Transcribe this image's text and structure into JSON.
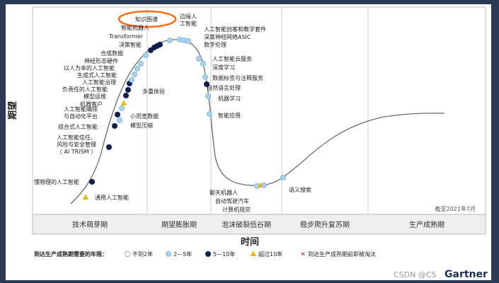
{
  "chart_data": {
    "type": "hype_cycle",
    "xlabel": "时间",
    "ylabel": "期望",
    "date_note": "截至2021年7月",
    "phases": [
      "技术萌芽期",
      "期望膨胀期",
      "泡沫破裂低谷期",
      "稳步爬升复苏期",
      "生产成熟期"
    ],
    "legend": {
      "title": "到达生产成熟期需要的年限：",
      "items": [
        {
          "label": "不到2年",
          "category": "lt2",
          "color": "#ffffff"
        },
        {
          "label": "2—5年",
          "category": "y2to5",
          "color": "#a8d3ea"
        },
        {
          "label": "5—10年",
          "category": "y5to10",
          "color": "#0d1f4f"
        },
        {
          "label": "超过10年",
          "category": "gt10",
          "color": "#f0b400"
        },
        {
          "label": "到达生产成熟期前即被淘汰",
          "category": "obsolete",
          "color": "#d01f1f"
        }
      ]
    },
    "highlighted_label": "知识图谱",
    "points": [
      {
        "label": "通用人工智能",
        "category": "gt10"
      },
      {
        "label": "懂物理的人工智能",
        "category": "y5to10"
      },
      {
        "label": "人工智能信任、风险与安全管理（AI TRiSM）",
        "category": "y5to10"
      },
      {
        "label": "组合式人工智能",
        "category": "y5to10"
      },
      {
        "label": "模型压缩",
        "category": "y2to5"
      },
      {
        "label": "人工智能编排与自动化平台",
        "category": "y5to10"
      },
      {
        "label": "小而宽数据",
        "category": "y2to5"
      },
      {
        "label": "机器客户",
        "category": "gt10"
      },
      {
        "label": "模型运维",
        "category": "y5to10"
      },
      {
        "label": "负责任的人工智能",
        "category": "y5to10"
      },
      {
        "label": "多重体验",
        "category": "y5to10"
      },
      {
        "label": "人工智能治理",
        "category": "y2to5"
      },
      {
        "label": "生成式人工智能",
        "category": "y2to5"
      },
      {
        "label": "以人为本的人工智能",
        "category": "y2to5"
      },
      {
        "label": "神经形态硬件",
        "category": "y2to5"
      },
      {
        "label": "合成数据",
        "category": "y2to5"
      },
      {
        "label": "决策智能",
        "category": "y5to10"
      },
      {
        "label": "Transformer",
        "category": "y5to10"
      },
      {
        "label": "智能机器人",
        "category": "y5to10"
      },
      {
        "label": "知识图谱",
        "category": "y5to10"
      },
      {
        "label": "边缘人工智能",
        "category": "y2to5"
      },
      {
        "label": "人工智能创客和教学套件",
        "category": "y2to5"
      },
      {
        "label": "深度神经网络ASIC",
        "category": "y2to5"
      },
      {
        "label": "数字伦理",
        "category": "y2to5"
      },
      {
        "label": "人工智能云服务",
        "category": "y2to5"
      },
      {
        "label": "深度学习",
        "category": "y2to5"
      },
      {
        "label": "数据标签与注释服务",
        "category": "y2to5"
      },
      {
        "label": "自然语言处理",
        "category": "y5to10"
      },
      {
        "label": "机器学习",
        "category": "y2to5"
      },
      {
        "label": "智能应用",
        "category": "y2to5"
      },
      {
        "label": "聊天机器人",
        "category": "y2to5"
      },
      {
        "label": "自动驾驶汽车",
        "category": "gt10"
      },
      {
        "label": "计算机视觉",
        "category": "y2to5"
      },
      {
        "label": "语义搜索",
        "category": "y2to5"
      }
    ]
  },
  "footer": {
    "watermark": "CSDN @CS",
    "brand": "Gartner"
  }
}
